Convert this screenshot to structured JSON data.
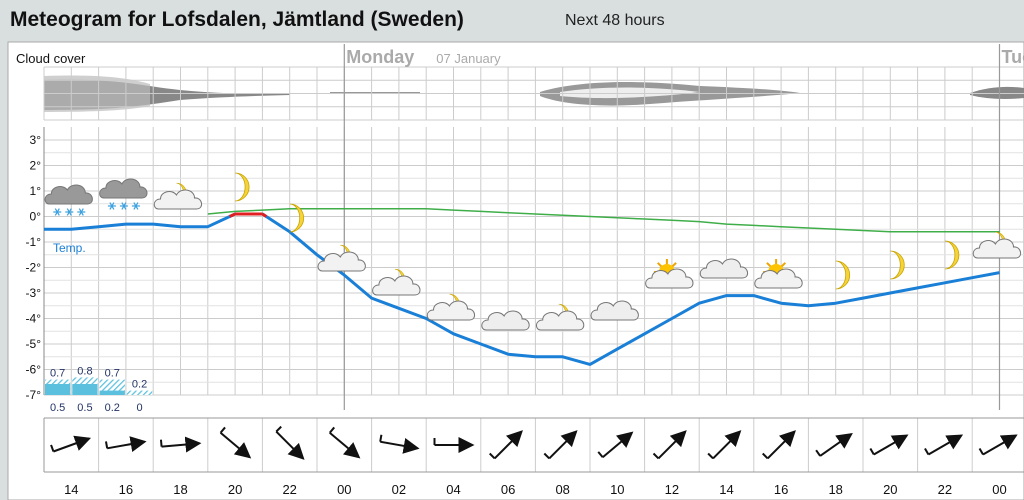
{
  "header": {
    "title": "Meteogram for Lofsdalen, Jämtland (Sweden)",
    "subtitle": "Next 48 hours"
  },
  "chart_data": {
    "type": "line",
    "cloud_label": "Cloud cover",
    "days": [
      {
        "index": 11,
        "name": "Monday",
        "date": "07 January"
      },
      {
        "index": 35,
        "name": "Tuesday"
      }
    ],
    "categories": [
      null,
      "14",
      null,
      "16",
      null,
      "18",
      null,
      "20",
      null,
      "22",
      null,
      "00",
      null,
      "02",
      null,
      "04",
      null,
      "06",
      null,
      "08",
      null,
      "10",
      null,
      "12",
      null,
      "14",
      null,
      "16",
      null,
      "18",
      null,
      "20",
      null,
      "22",
      null,
      "00"
    ],
    "ylim": [
      -7,
      3
    ],
    "yticks": [
      {
        "value": 3,
        "label": "3°"
      },
      {
        "value": 2,
        "label": "2°"
      },
      {
        "value": 1,
        "label": "1°"
      },
      {
        "value": 0,
        "label": "0°"
      },
      {
        "value": -1,
        "label": "-1°"
      },
      {
        "value": -2,
        "label": "-2°"
      },
      {
        "value": -3,
        "label": "-3°"
      },
      {
        "value": -4,
        "label": "-4°"
      },
      {
        "value": -5,
        "label": "-5°"
      },
      {
        "value": -6,
        "label": "-6°"
      },
      {
        "value": -7,
        "label": "-7°"
      }
    ],
    "grid": true,
    "series": [
      {
        "name": "Temp.",
        "color": "#1a7fd6",
        "above_zero_color": "#e02020",
        "values": [
          -0.5,
          -0.5,
          -0.4,
          -0.3,
          -0.3,
          -0.4,
          -0.4,
          0.1,
          0.1,
          -0.6,
          -1.5,
          -2.3,
          -3.2,
          -3.6,
          -4.0,
          -4.6,
          -5.0,
          -5.4,
          -5.5,
          -5.5,
          -5.8,
          -5.2,
          -4.6,
          -4.0,
          -3.4,
          -3.1,
          -3.1,
          -3.4,
          -3.5,
          -3.4,
          -3.2,
          -3.0,
          -2.8,
          -2.6,
          -2.4,
          -2.2
        ]
      },
      {
        "color": "#3fae49",
        "values": [
          null,
          null,
          null,
          null,
          null,
          null,
          0.1,
          0.2,
          0.25,
          0.3,
          0.3,
          0.3,
          0.3,
          0.3,
          0.3,
          0.25,
          0.2,
          0.15,
          0.1,
          0.05,
          0,
          -0.05,
          -0.1,
          -0.15,
          -0.2,
          -0.3,
          -0.35,
          -0.4,
          -0.45,
          -0.5,
          -0.55,
          -0.6,
          -0.6,
          -0.6,
          -0.6,
          -0.6
        ]
      }
    ],
    "precipitation": {
      "color": "#5bc0de",
      "max": [
        0.7,
        0.8,
        0.7,
        0.2
      ],
      "min": [
        0.5,
        0.5,
        0.2,
        0
      ]
    }
  }
}
